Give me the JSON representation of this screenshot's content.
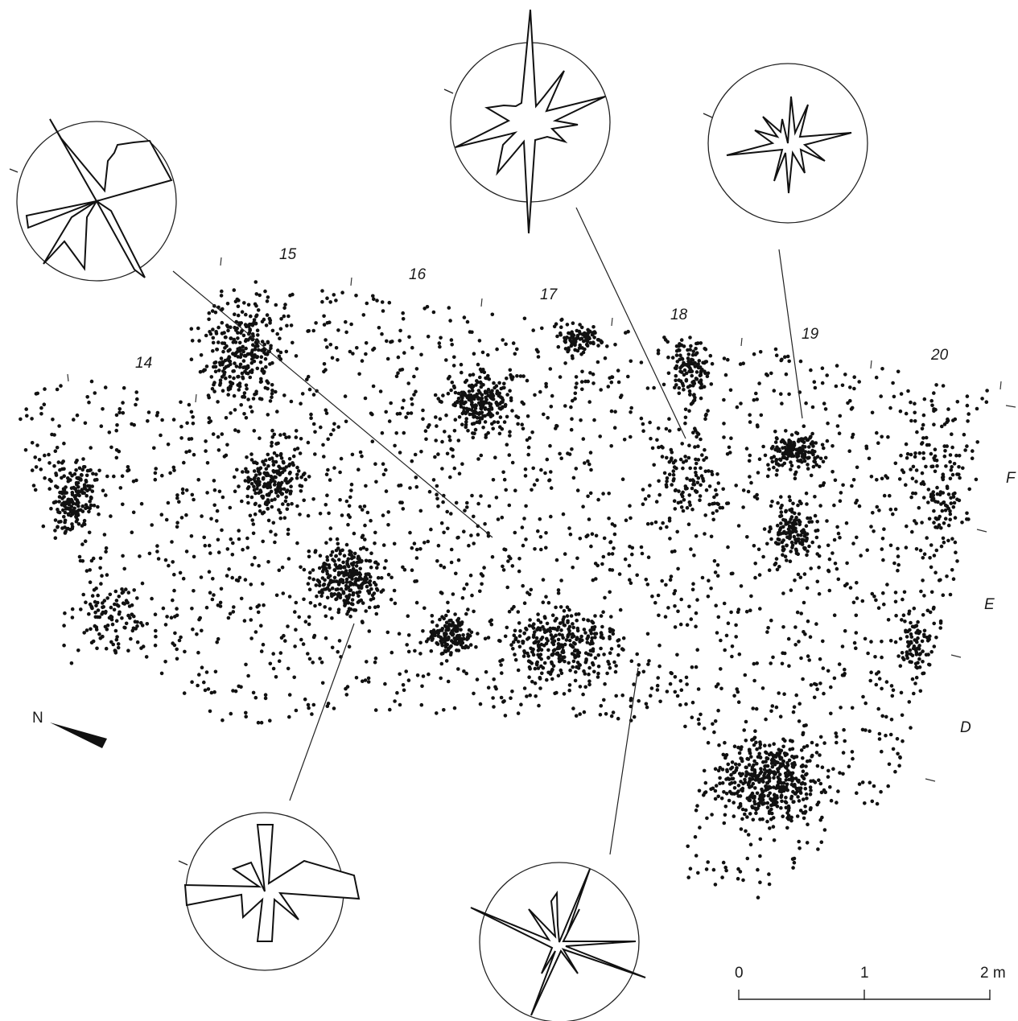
{
  "grid": {
    "columns": [
      "14",
      "15",
      "16",
      "17",
      "18",
      "19",
      "20"
    ],
    "rows": [
      "F",
      "E",
      "D"
    ]
  },
  "north": {
    "label": "N"
  },
  "scale_bar": {
    "ticks": [
      "0",
      "1",
      "2 m"
    ]
  },
  "rose_diagrams": [
    {
      "name": "rose-diagram-square-15"
    },
    {
      "name": "rose-diagram-square-18-north"
    },
    {
      "name": "rose-diagram-square-19"
    },
    {
      "name": "rose-diagram-square-15-south"
    },
    {
      "name": "rose-diagram-square-18-south"
    }
  ],
  "point_clusters": [
    {
      "region": "14",
      "density": "medium"
    },
    {
      "region": "15-16",
      "density": "high"
    },
    {
      "region": "17-18",
      "density": "medium"
    },
    {
      "region": "19-20",
      "density": "low"
    },
    {
      "region": "D-19",
      "density": "high"
    }
  ],
  "colors": {
    "ink": "#111111",
    "background": "#ffffff"
  }
}
